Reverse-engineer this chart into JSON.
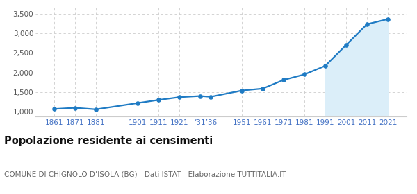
{
  "years": [
    1861,
    1871,
    1881,
    1901,
    1911,
    1921,
    1931,
    1936,
    1951,
    1961,
    1971,
    1981,
    1991,
    2001,
    2011,
    2021
  ],
  "population": [
    1070,
    1100,
    1060,
    1220,
    1300,
    1370,
    1400,
    1380,
    1540,
    1590,
    1810,
    1950,
    2170,
    2700,
    3230,
    3360
  ],
  "x_tick_labels": [
    "1861",
    "1871",
    "1881",
    "1901",
    "1911",
    "1921",
    "’31’36",
    "1951",
    "1961",
    "1971",
    "1981",
    "1991",
    "2001",
    "2011",
    "2021"
  ],
  "x_tick_positions": [
    1861,
    1871,
    1881,
    1901,
    1911,
    1921,
    1933.5,
    1951,
    1961,
    1971,
    1981,
    1991,
    2001,
    2011,
    2021
  ],
  "y_ticks": [
    1000,
    1500,
    2000,
    2500,
    3000,
    3500
  ],
  "ylim": [
    880,
    3650
  ],
  "xlim": [
    1852,
    2030
  ],
  "fill_start_year": 1991,
  "line_color": "#1f7bc4",
  "fill_color": "#dbeef9",
  "marker_color": "#1f7bc4",
  "grid_color": "#cccccc",
  "background_color": "#ffffff",
  "title": "Popolazione residente ai censimenti",
  "subtitle": "COMUNE DI CHIGNOLO D’ISOLA (BG) - Dati ISTAT - Elaborazione TUTTITALIA.IT",
  "title_fontsize": 10.5,
  "subtitle_fontsize": 7.5,
  "tick_color": "#4472c4",
  "tick_fontsize": 7.5
}
